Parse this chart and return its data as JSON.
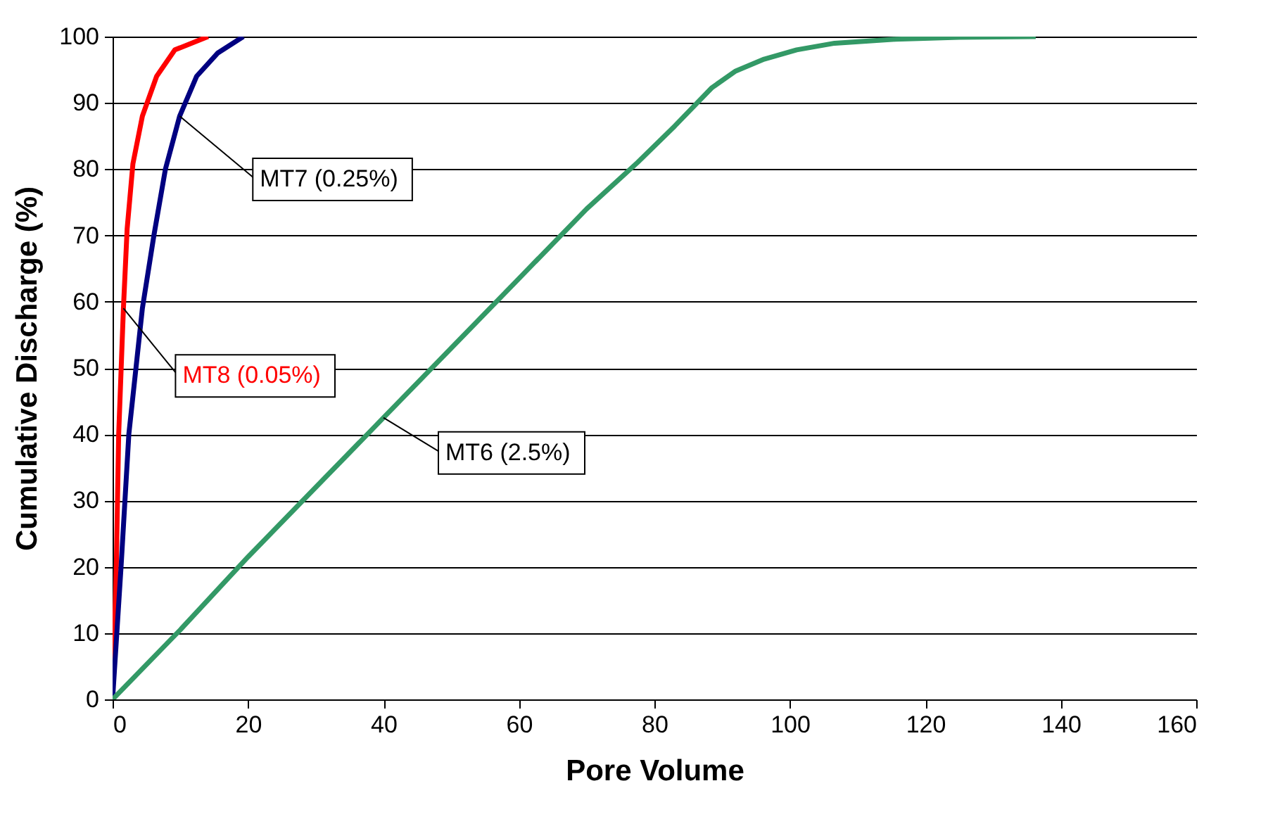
{
  "chart_data": {
    "type": "line",
    "xlabel": "Pore Volume",
    "ylabel": "Cumulative Discharge (%)",
    "xlim": [
      0,
      160
    ],
    "ylim": [
      0,
      100
    ],
    "xticks": [
      0,
      20,
      40,
      60,
      80,
      100,
      120,
      140,
      160
    ],
    "yticks": [
      0,
      10,
      20,
      30,
      40,
      50,
      60,
      70,
      80,
      90,
      100
    ],
    "grid": "y",
    "marker": "none",
    "line_style": "solid",
    "series": [
      {
        "name": "MT8 (0.05%)",
        "color": "#ff0000",
        "x": [
          0,
          0.55,
          0.9,
          1.6,
          2.15,
          3,
          4.4,
          6.5,
          9.2,
          14.1
        ],
        "values": [
          0,
          20,
          40,
          59,
          71,
          80.8,
          88,
          94,
          98,
          100
        ]
      },
      {
        "name": "MT7 (0.25%)",
        "color": "#000080",
        "x": [
          0,
          1.25,
          2.4,
          4.4,
          6.1,
          7.8,
          9.9,
          12.4,
          15.5,
          19.3
        ],
        "values": [
          0,
          20,
          40,
          59,
          70,
          80,
          88,
          94,
          97.5,
          100
        ]
      },
      {
        "name": "MT6 (2.5%)",
        "color": "#339966",
        "x": [
          0,
          10,
          20,
          30,
          40,
          50,
          60,
          70,
          77.5,
          83,
          88.5,
          92,
          96.2,
          101,
          106.6,
          115.6,
          125,
          136.3
        ],
        "values": [
          0,
          10.5,
          21.5,
          32,
          42.5,
          53,
          63.5,
          74,
          81,
          86.5,
          92.3,
          94.8,
          96.6,
          98,
          99,
          99.6,
          99.9,
          100
        ]
      }
    ]
  }
}
